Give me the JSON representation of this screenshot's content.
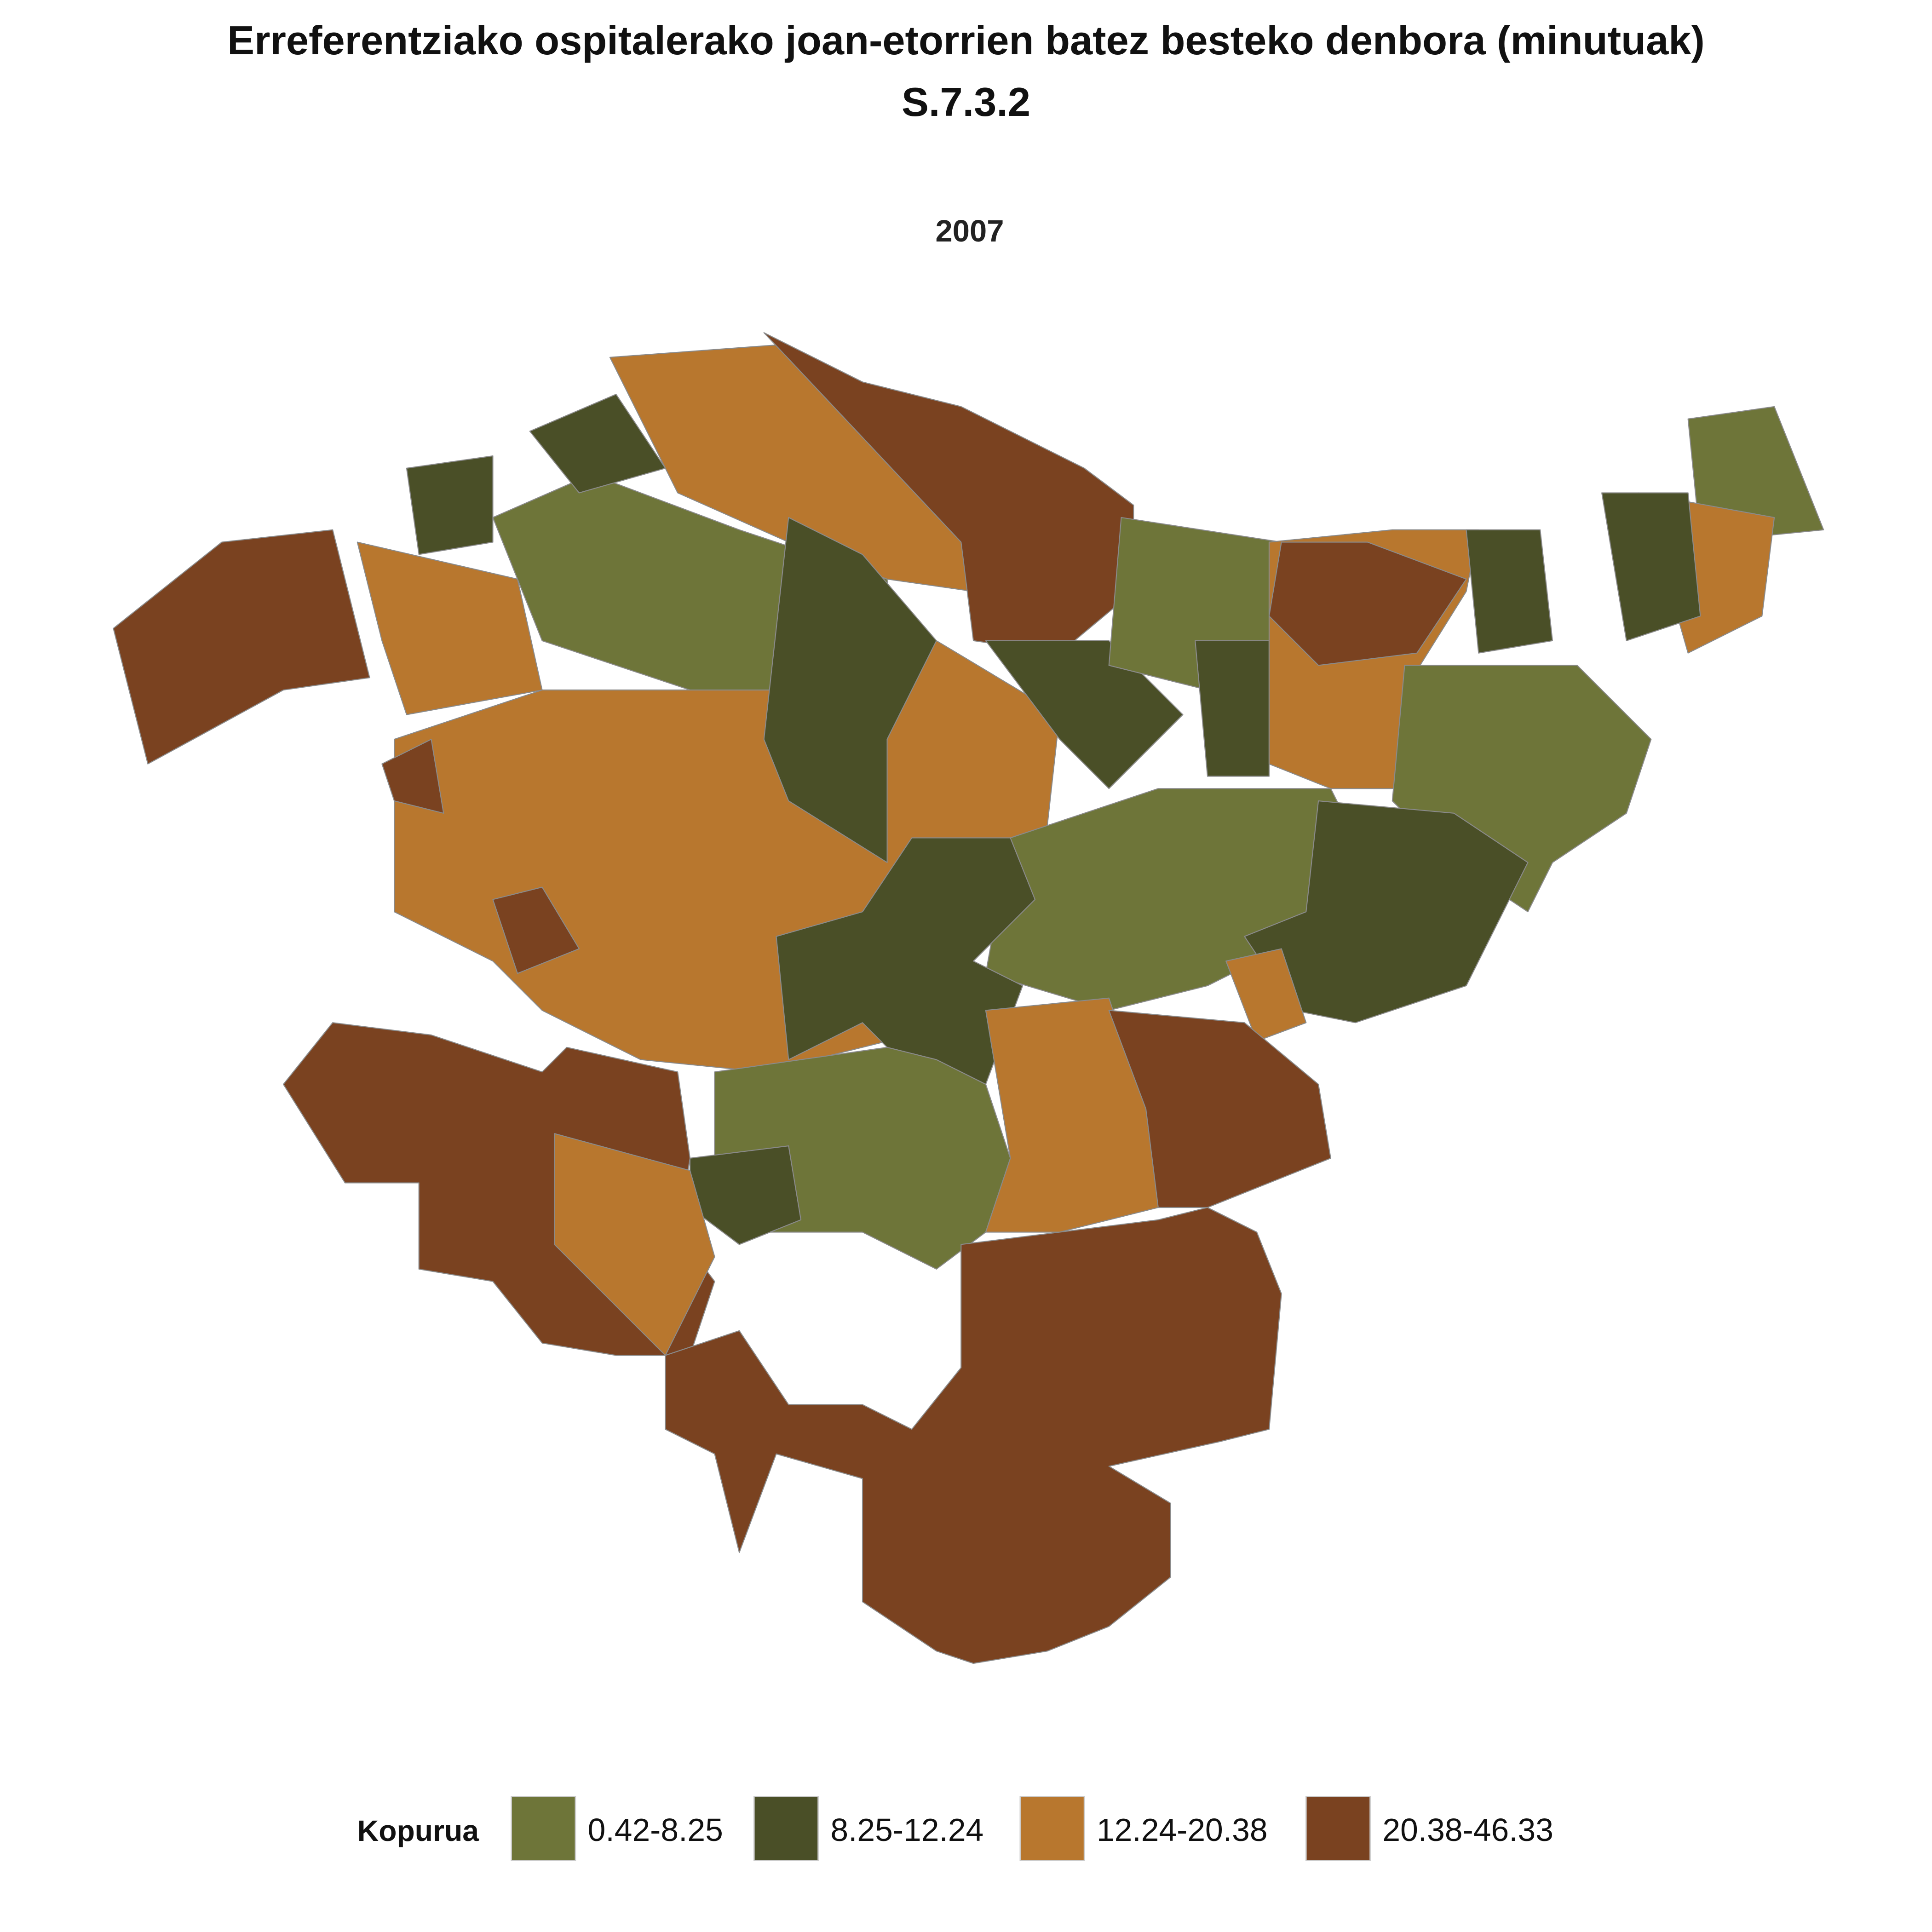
{
  "title": "Erreferentziako ospitalerako joan-etorrien batez besteko denbora (minutuak)",
  "code": "S.7.3.2",
  "year": "2007",
  "legend": {
    "title": "Kopurua",
    "items": [
      {
        "label": "0.42-8.25",
        "color": "#6e7539"
      },
      {
        "label": "8.25-12.24",
        "color": "#4a4f27"
      },
      {
        "label": "12.24-20.38",
        "color": "#b8772e"
      },
      {
        "label": "20.38-46.33",
        "color": "#7a4220"
      }
    ]
  }
}
